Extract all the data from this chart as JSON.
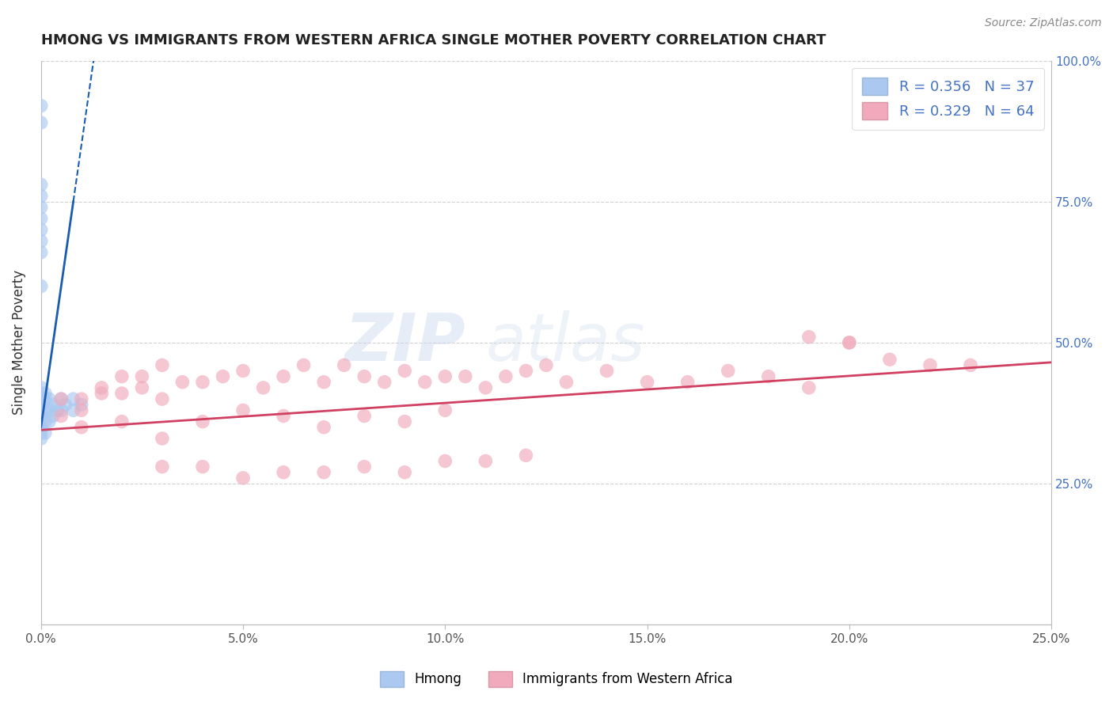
{
  "title": "HMONG VS IMMIGRANTS FROM WESTERN AFRICA SINGLE MOTHER POVERTY CORRELATION CHART",
  "source": "Source: ZipAtlas.com",
  "ylabel": "Single Mother Poverty",
  "xlim": [
    0.0,
    0.25
  ],
  "ylim": [
    0.0,
    1.0
  ],
  "xticks": [
    0.0,
    0.05,
    0.1,
    0.15,
    0.2,
    0.25
  ],
  "yticks": [
    0.0,
    0.25,
    0.5,
    0.75,
    1.0
  ],
  "ytick_labels_right": [
    "",
    "25.0%",
    "50.0%",
    "75.0%",
    "100.0%"
  ],
  "hmong_R": "0.356",
  "hmong_N": "37",
  "wafr_R": "0.329",
  "wafr_N": "64",
  "hmong_color": "#aac8f0",
  "wafr_color": "#f0aabb",
  "hmong_line_color": "#1a5cb0",
  "wafr_line_color": "#d04060",
  "legend_label_hmong": "Hmong",
  "legend_label_wafr": "Immigrants from Western Africa",
  "watermark_zip": "ZIP",
  "watermark_atlas": "atlas",
  "hmong_x": [
    0.0,
    0.0,
    0.0,
    0.0,
    0.0,
    0.0,
    0.0,
    0.0,
    0.0,
    0.0,
    0.0,
    0.0,
    0.0,
    0.0,
    0.0,
    0.0,
    0.0,
    0.0,
    0.0,
    0.0,
    0.001,
    0.001,
    0.001,
    0.001,
    0.001,
    0.002,
    0.002,
    0.002,
    0.003,
    0.003,
    0.004,
    0.005,
    0.005,
    0.006,
    0.008,
    0.008,
    0.01
  ],
  "hmong_y": [
    0.92,
    0.89,
    0.78,
    0.76,
    0.74,
    0.72,
    0.7,
    0.68,
    0.66,
    0.6,
    0.42,
    0.41,
    0.4,
    0.39,
    0.38,
    0.37,
    0.36,
    0.35,
    0.34,
    0.33,
    0.41,
    0.4,
    0.38,
    0.36,
    0.34,
    0.4,
    0.38,
    0.36,
    0.39,
    0.37,
    0.38,
    0.4,
    0.38,
    0.39,
    0.4,
    0.38,
    0.39
  ],
  "wafr_x": [
    0.005,
    0.01,
    0.015,
    0.02,
    0.025,
    0.03,
    0.035,
    0.04,
    0.045,
    0.05,
    0.055,
    0.06,
    0.065,
    0.07,
    0.075,
    0.08,
    0.085,
    0.09,
    0.095,
    0.1,
    0.105,
    0.11,
    0.115,
    0.12,
    0.125,
    0.13,
    0.14,
    0.15,
    0.16,
    0.17,
    0.18,
    0.19,
    0.2,
    0.21,
    0.22,
    0.23,
    0.01,
    0.02,
    0.03,
    0.04,
    0.05,
    0.06,
    0.07,
    0.08,
    0.09,
    0.1,
    0.03,
    0.04,
    0.05,
    0.06,
    0.07,
    0.08,
    0.09,
    0.1,
    0.11,
    0.12,
    0.005,
    0.01,
    0.015,
    0.02,
    0.025,
    0.03,
    0.19,
    0.2
  ],
  "wafr_y": [
    0.37,
    0.38,
    0.42,
    0.44,
    0.44,
    0.46,
    0.43,
    0.43,
    0.44,
    0.45,
    0.42,
    0.44,
    0.46,
    0.43,
    0.46,
    0.44,
    0.43,
    0.45,
    0.43,
    0.44,
    0.44,
    0.42,
    0.44,
    0.45,
    0.46,
    0.43,
    0.45,
    0.43,
    0.43,
    0.45,
    0.44,
    0.42,
    0.5,
    0.47,
    0.46,
    0.46,
    0.35,
    0.36,
    0.33,
    0.36,
    0.38,
    0.37,
    0.35,
    0.37,
    0.36,
    0.38,
    0.28,
    0.28,
    0.26,
    0.27,
    0.27,
    0.28,
    0.27,
    0.29,
    0.29,
    0.3,
    0.4,
    0.4,
    0.41,
    0.41,
    0.42,
    0.4,
    0.51,
    0.5
  ],
  "hmong_line_x0": 0.0,
  "hmong_line_y0": 0.35,
  "hmong_line_x1": 0.008,
  "hmong_line_y1": 0.75,
  "hmong_line_solid_xmax": 0.008,
  "hmong_line_dash_xmax": 0.06,
  "wafr_line_y0": 0.345,
  "wafr_line_y1": 0.465
}
